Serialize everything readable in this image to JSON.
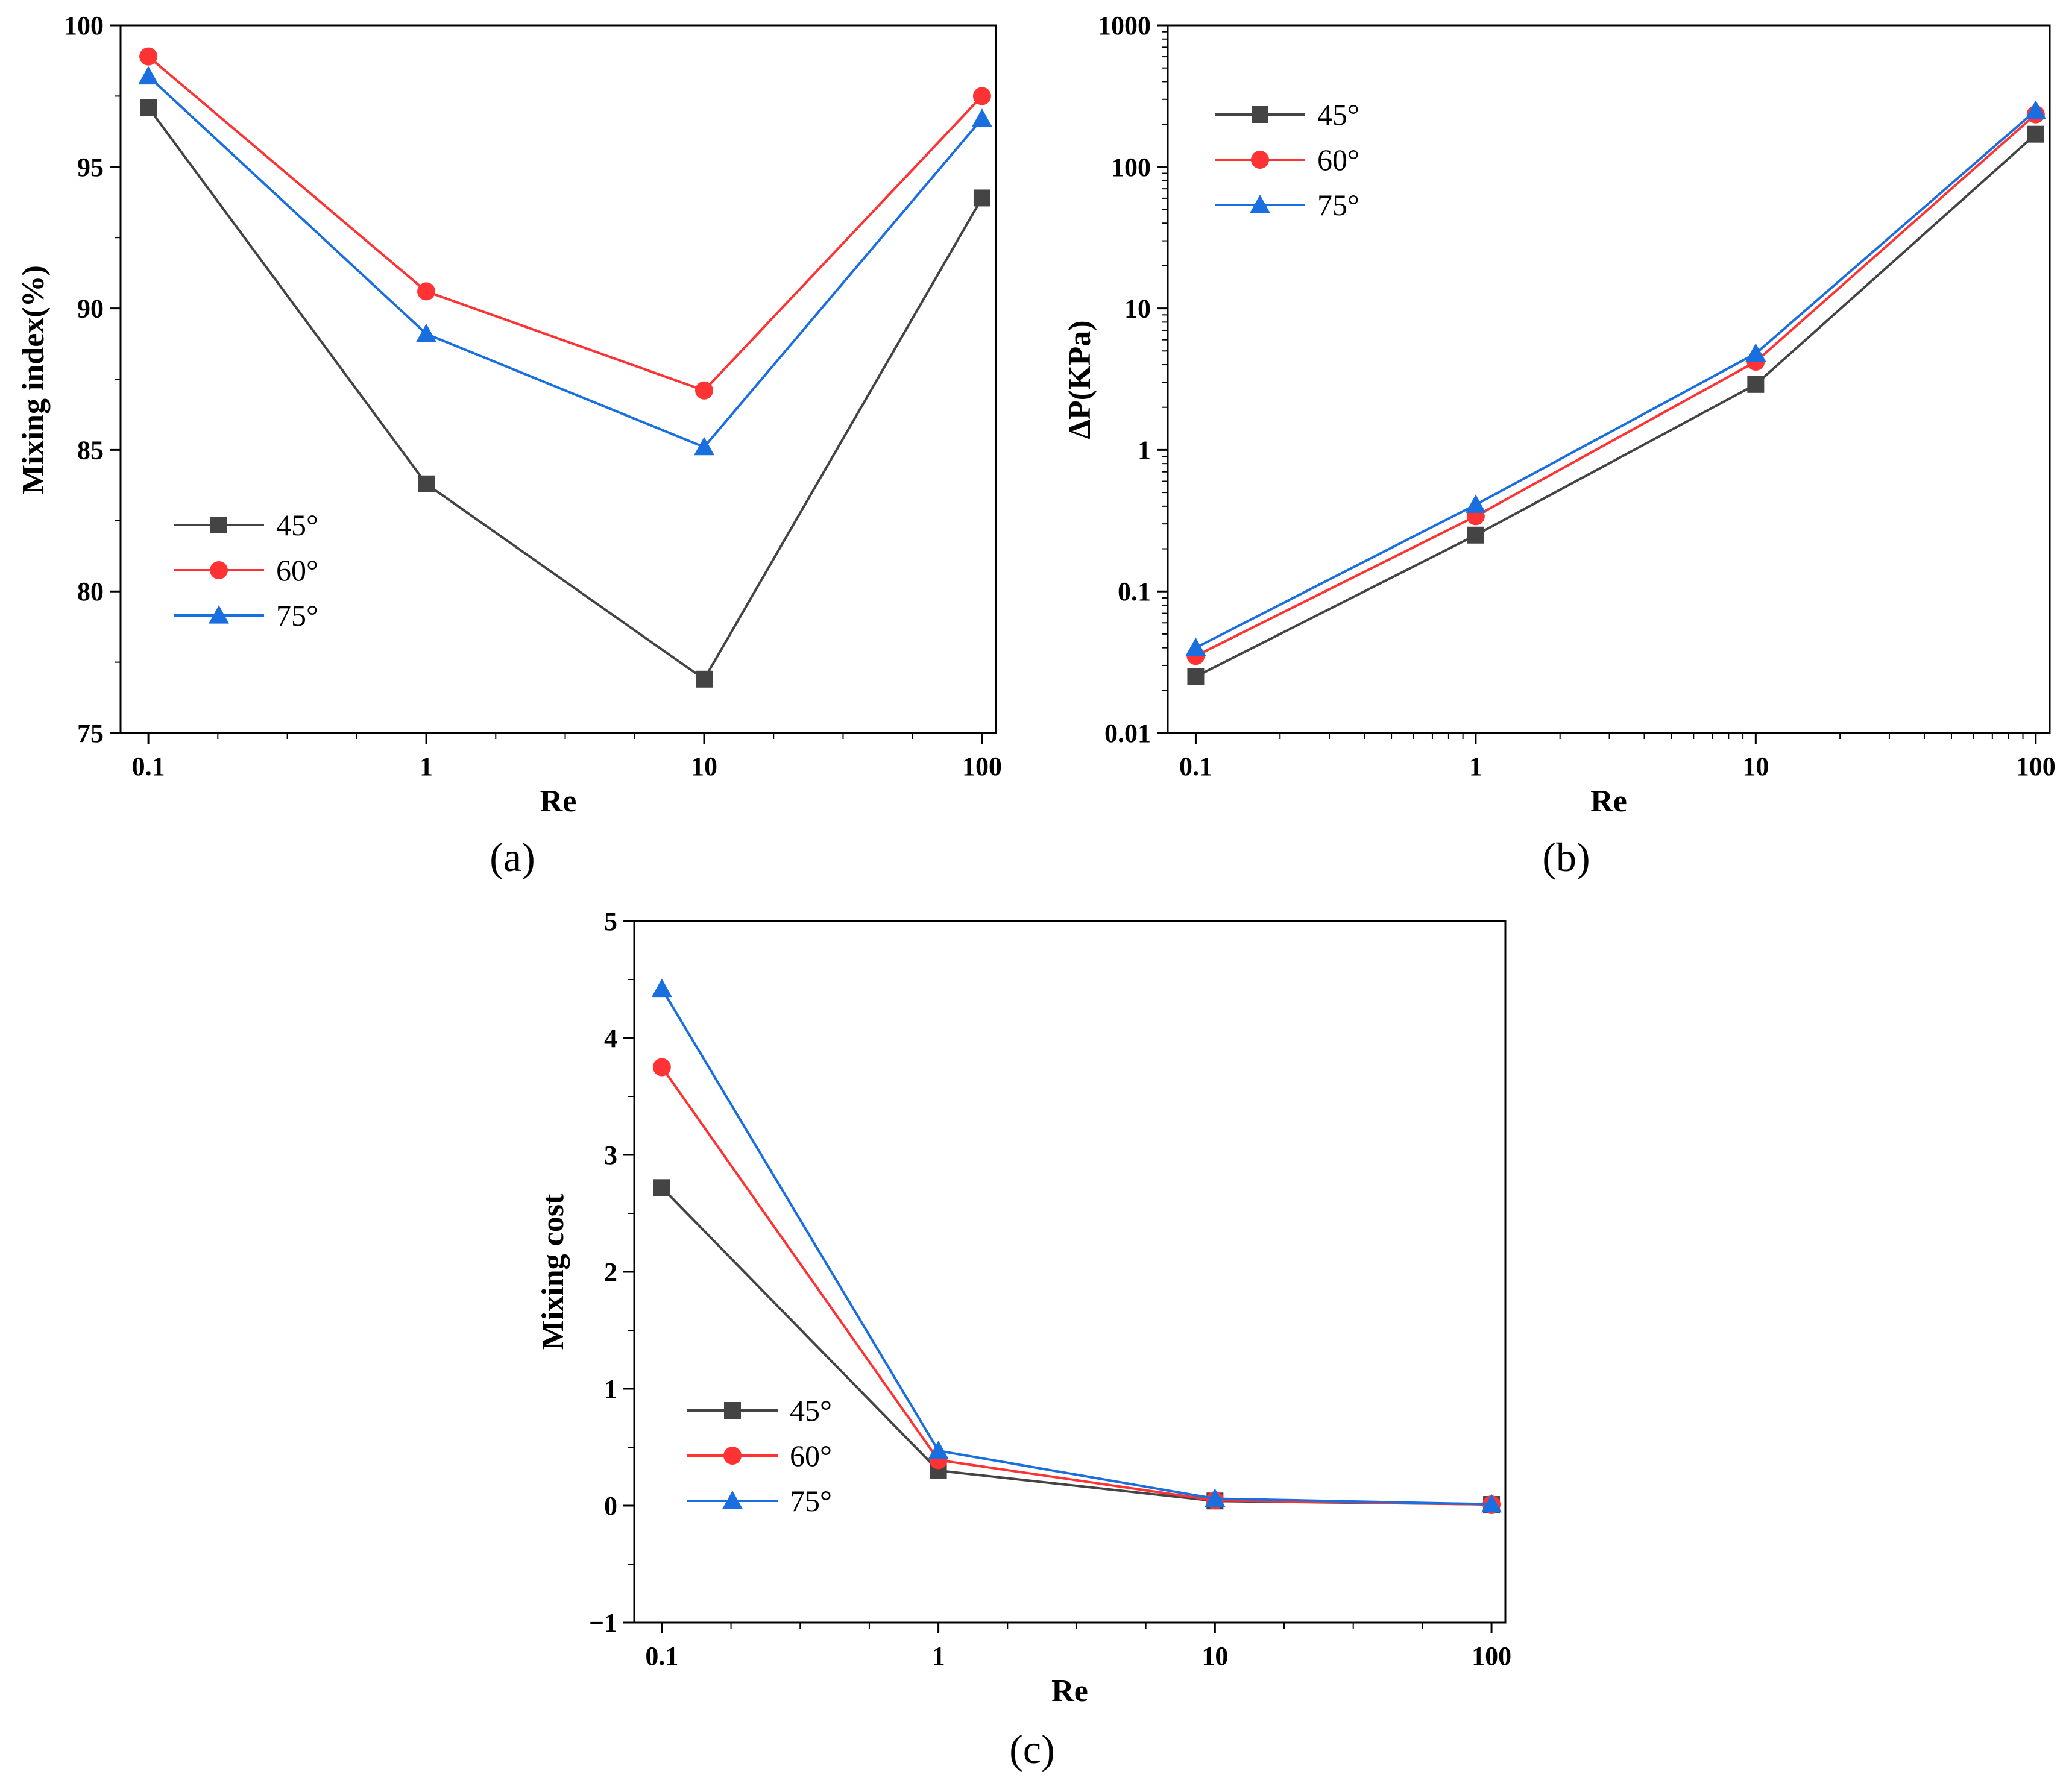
{
  "chart_data": [
    {
      "type": "line",
      "panel_label": "(a)",
      "x_scale": "log",
      "y_scale": "linear",
      "xlabel": "Re",
      "ylabel": "Mixing index(%)",
      "x": [
        0.1,
        1,
        10,
        100
      ],
      "x_tick_labels": [
        "0.1",
        "1",
        "10",
        "100"
      ],
      "ylim": [
        75,
        100
      ],
      "y_ticks": [
        75,
        80,
        85,
        90,
        95,
        100
      ],
      "y_tick_labels": [
        "75",
        "80",
        "85",
        "90",
        "95",
        "100"
      ],
      "legend_position": "bottom-left",
      "series": [
        {
          "name": "45°",
          "color": "#444444",
          "marker": "square",
          "values": [
            97.1,
            83.8,
            76.9,
            93.9
          ]
        },
        {
          "name": "60°",
          "color": "#ff3333",
          "marker": "circle",
          "values": [
            98.9,
            90.6,
            87.1,
            97.5
          ]
        },
        {
          "name": "75°",
          "color": "#1a6fe0",
          "marker": "triangle",
          "values": [
            98.2,
            89.1,
            85.1,
            96.7
          ]
        }
      ]
    },
    {
      "type": "line",
      "panel_label": "(b)",
      "x_scale": "log",
      "y_scale": "log",
      "xlabel": "Re",
      "ylabel": "ΔP(KPa)",
      "x": [
        0.1,
        1,
        10,
        100
      ],
      "x_tick_labels": [
        "0.1",
        "1",
        "10",
        "100"
      ],
      "ylim": [
        0.01,
        1000
      ],
      "y_ticks": [
        0.01,
        0.1,
        1,
        10,
        100,
        1000
      ],
      "y_tick_labels": [
        "0.01",
        "0.1",
        "1",
        "10",
        "100",
        "1000"
      ],
      "legend_position": "top-left",
      "series": [
        {
          "name": "45°",
          "color": "#444444",
          "marker": "square",
          "values": [
            0.025,
            0.25,
            2.9,
            170
          ]
        },
        {
          "name": "60°",
          "color": "#ff3333",
          "marker": "circle",
          "values": [
            0.035,
            0.34,
            4.2,
            235
          ]
        },
        {
          "name": "75°",
          "color": "#1a6fe0",
          "marker": "triangle",
          "values": [
            0.04,
            0.41,
            4.8,
            250
          ]
        }
      ]
    },
    {
      "type": "line",
      "panel_label": "(c)",
      "x_scale": "log",
      "y_scale": "linear",
      "xlabel": "Re",
      "ylabel": "Mixing cost",
      "x": [
        0.1,
        1,
        10,
        100
      ],
      "x_tick_labels": [
        "0.1",
        "1",
        "10",
        "100"
      ],
      "ylim": [
        -1,
        5
      ],
      "y_ticks": [
        -1,
        0,
        1,
        2,
        3,
        4,
        5
      ],
      "y_tick_labels": [
        "−1",
        "0",
        "1",
        "2",
        "3",
        "4",
        "5"
      ],
      "legend_position": "bottom-left",
      "series": [
        {
          "name": "45°",
          "color": "#444444",
          "marker": "square",
          "values": [
            2.72,
            0.3,
            0.04,
            0.01
          ]
        },
        {
          "name": "60°",
          "color": "#ff3333",
          "marker": "circle",
          "values": [
            3.75,
            0.39,
            0.045,
            0.01
          ]
        },
        {
          "name": "75°",
          "color": "#1a6fe0",
          "marker": "triangle",
          "values": [
            4.42,
            0.47,
            0.06,
            0.012
          ]
        }
      ]
    }
  ]
}
